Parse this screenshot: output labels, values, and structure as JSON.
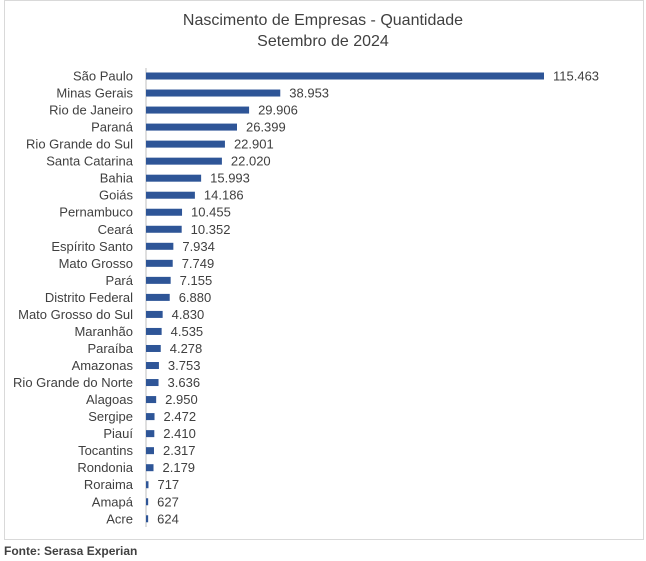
{
  "chart_data": {
    "type": "bar",
    "orientation": "horizontal",
    "title": "Nascimento de Empresas - Quantidade",
    "subtitle": "Setembro de 2024",
    "categories": [
      "São Paulo",
      "Minas Gerais",
      "Rio de Janeiro",
      "Paraná",
      "Rio Grande do Sul",
      "Santa Catarina",
      "Bahia",
      "Goiás",
      "Pernambuco",
      "Ceará",
      "Espírito Santo",
      "Mato Grosso",
      "Pará",
      "Distrito Federal",
      "Mato Grosso do Sul",
      "Maranhão",
      "Paraíba",
      "Amazonas",
      "Rio Grande do Norte",
      "Alagoas",
      "Sergipe",
      "Piauí",
      "Tocantins",
      "Rondonia",
      "Roraima",
      "Amapá",
      "Acre"
    ],
    "values": [
      115463,
      38953,
      29906,
      26399,
      22901,
      22020,
      15993,
      14186,
      10455,
      10352,
      7934,
      7749,
      7155,
      6880,
      4830,
      4535,
      4278,
      3753,
      3636,
      2950,
      2472,
      2410,
      2317,
      2179,
      717,
      627,
      624
    ],
    "value_labels": [
      "115.463",
      "38.953",
      "29.906",
      "26.399",
      "22.901",
      "22.020",
      "15.993",
      "14.186",
      "10.455",
      "10.352",
      "7.934",
      "7.749",
      "7.155",
      "6.880",
      "4.830",
      "4.535",
      "4.278",
      "3.753",
      "3.636",
      "2.950",
      "2.472",
      "2.410",
      "2.317",
      "2.179",
      "717",
      "627",
      "624"
    ],
    "xlim": [
      0,
      115463
    ],
    "grid": false,
    "legend": "none",
    "bar_color": "#2e5597"
  },
  "source": "Fonte: Serasa Experian"
}
